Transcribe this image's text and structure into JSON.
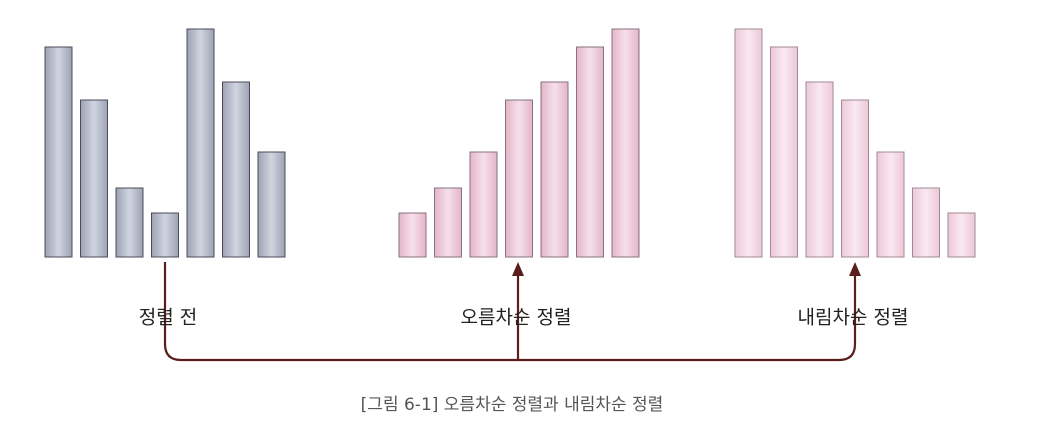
{
  "groups": [
    {
      "label": "정렬 전",
      "values": [
        210,
        157,
        69,
        44,
        228,
        175,
        105
      ]
    },
    {
      "label": "오름차순 정렬",
      "values": [
        44,
        69,
        105,
        157,
        175,
        210,
        228
      ]
    },
    {
      "label": "내림차순 정렬",
      "values": [
        228,
        210,
        175,
        157,
        105,
        69,
        44
      ]
    }
  ],
  "caption": "[그림 6-1] 오름차순 정렬과 내림차순 정렬"
}
